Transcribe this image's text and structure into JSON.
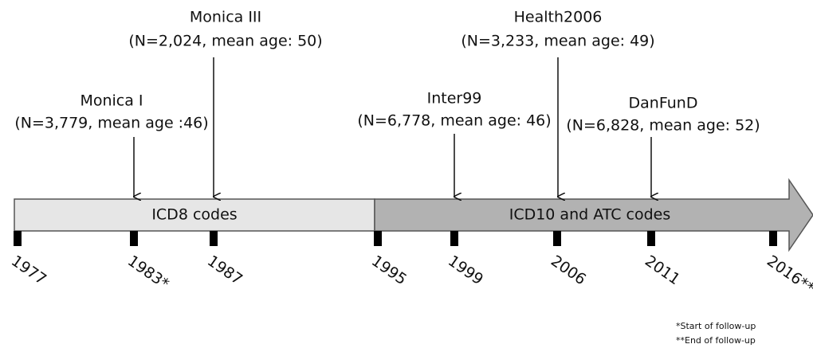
{
  "studies": [
    {
      "name": "Monica I",
      "details": "(N=3,779, mean age :46)"
    },
    {
      "name": "Monica III",
      "details": "(N=2,024, mean age: 50)"
    },
    {
      "name": "Inter99",
      "details": "(N=6,778, mean age: 46)"
    },
    {
      "name": "Health2006",
      "details": "(N=3,233, mean age: 49)"
    },
    {
      "name": "DanFunD",
      "details": "(N=6,828, mean age: 52)"
    }
  ],
  "segments": [
    "ICD8 codes",
    "ICD10 and ATC codes"
  ],
  "years": [
    "1977",
    "1983*",
    "1987",
    "1995",
    "1999",
    "2006",
    "2011",
    "2016**"
  ],
  "footnotes": [
    "*Start of follow-up",
    "**End of follow-up"
  ]
}
